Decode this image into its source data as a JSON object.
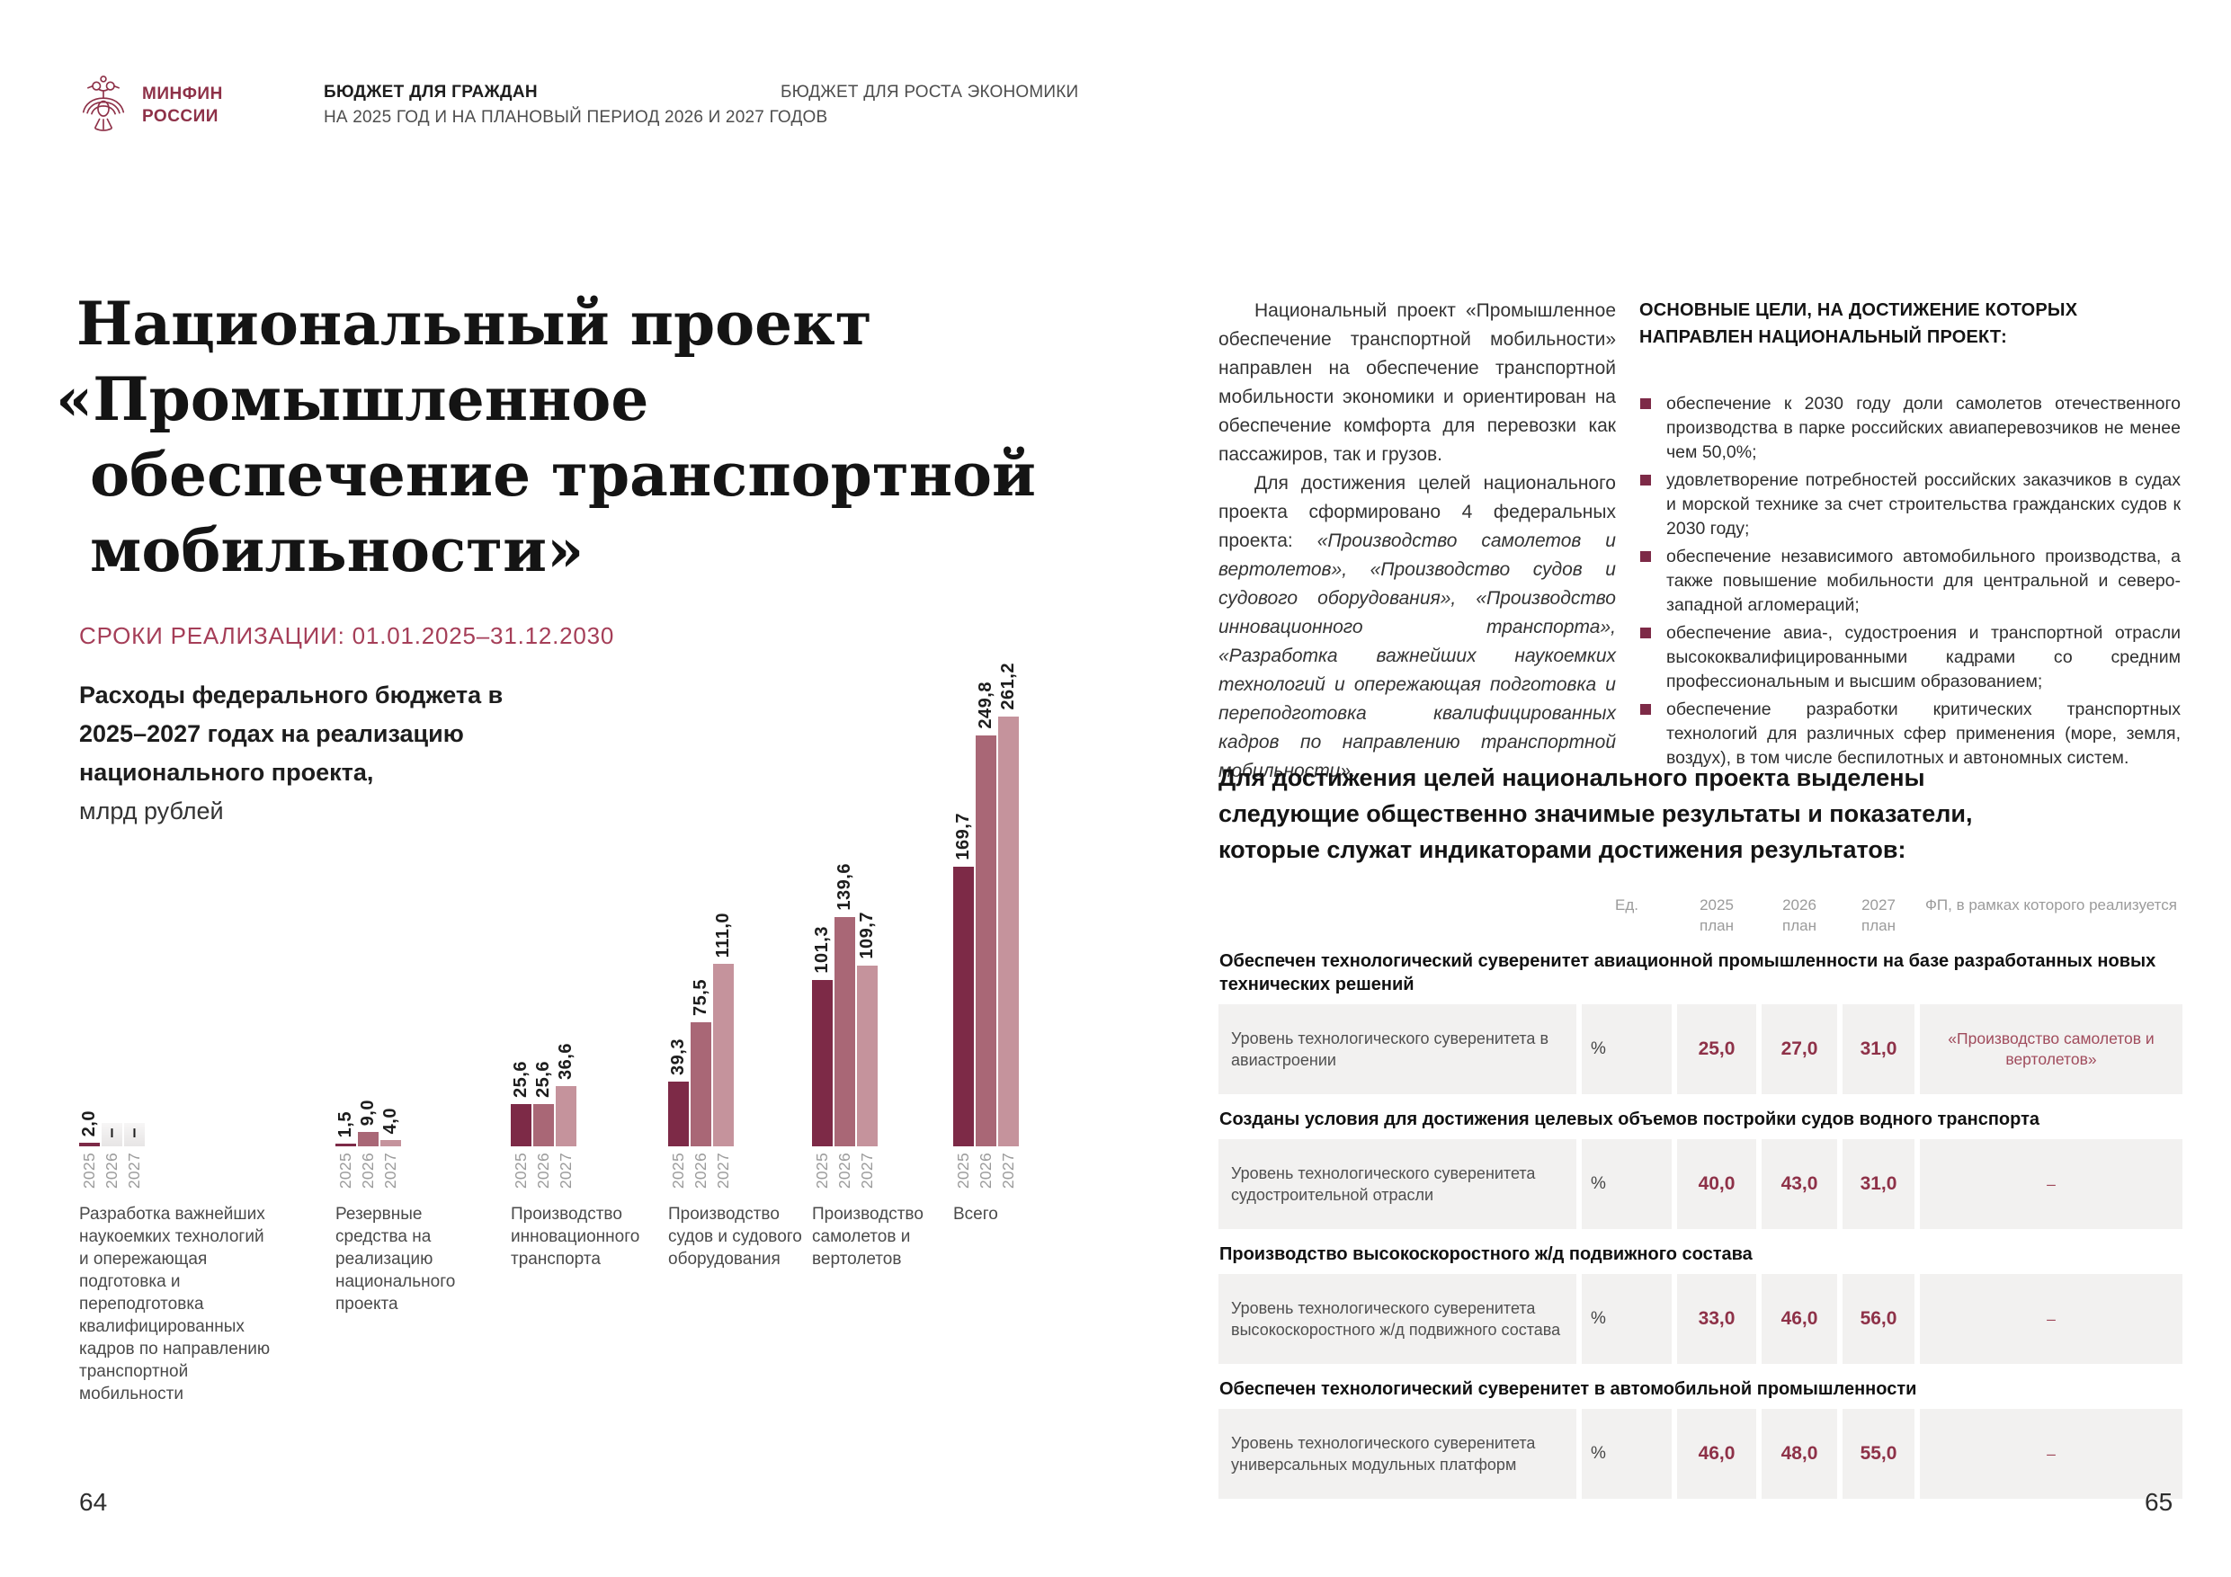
{
  "header": {
    "ministry_line1": "МИНФИН",
    "ministry_line2": "РОССИИ",
    "doc_title": "БЮДЖЕТ ДЛЯ ГРАЖДАН",
    "doc_subtitle": "НА 2025 ГОД И НА ПЛАНОВЫЙ ПЕРИОД 2026 И 2027 ГОДОВ",
    "doc_right": "БЮДЖЕТ ДЛЯ РОСТА ЭКОНОМИКИ"
  },
  "left_page": {
    "title_lines": [
      "Национальный проект",
      "«Промышленное",
      "обеспечение транспортной",
      "мобильности»"
    ],
    "dates": "СРОКИ РЕАЛИЗАЦИИ: 01.01.2025–31.12.2030",
    "chart_title_bold": "Расходы федерального бюджета в 2025–2027 годах на реализацию национального проекта,",
    "chart_title_unit": "млрд рублей",
    "page_number": "64"
  },
  "chart_data": {
    "type": "bar",
    "title": "Расходы федерального бюджета в 2025–2027 годах на реализацию национального проекта",
    "ylabel": "млрд рублей",
    "grid": false,
    "legend_position": "none",
    "years": [
      "2025",
      "2026",
      "2027"
    ],
    "colors": {
      "y2025": "#7d2a47",
      "y2026": "#a96776",
      "y2027": "#c5939c",
      "empty": "#edebeb"
    },
    "categories": [
      "Разработка важнейших наукоемких технологий и опережающая подготовка и переподготовка квалифицированных кадров по направлению транспортной мобильности",
      "Резервные средства на реализацию национального проекта",
      "Производство инновационного транспорта",
      "Производство судов и судового оборудования",
      "Производство самолетов и вертолетов",
      "Всего"
    ],
    "series": [
      {
        "name": "2025",
        "values": [
          2.0,
          1.5,
          25.6,
          39.3,
          101.3,
          169.7
        ],
        "labels": [
          "2,0",
          "1,5",
          "25,6",
          "39,3",
          "101,3",
          "169,7"
        ]
      },
      {
        "name": "2026",
        "values": [
          null,
          9.0,
          25.6,
          75.5,
          139.6,
          249.8
        ],
        "labels": [
          "–",
          "9,0",
          "25,6",
          "75,5",
          "139,6",
          "249,8"
        ]
      },
      {
        "name": "2027",
        "values": [
          null,
          4.0,
          36.6,
          111.0,
          109.7,
          261.2
        ],
        "labels": [
          "–",
          "4,0",
          "36,6",
          "111,0",
          "109,7",
          "261,2"
        ]
      }
    ]
  },
  "right_page": {
    "para1": "Национальный проект «Промышленное обеспечение транспортной мобильности» направлен на обеспечение транспортной мобильности экономики и ориентирован на обеспечение комфорта для перевозки как пассажиров, так и грузов.",
    "para2_intro": "Для достижения целей национального проекта сформировано 4 федеральных проекта: ",
    "para2_italic": "«Производство самолетов и вертолетов», «Производство судов и судового оборудования», «Производство инновационного транспорта», «Разработка важнейших наукоемких технологий и опережающая подготовка и переподготовка квалифицированных кадров по направлению транспортной мобильности».",
    "goals_heading": "ОСНОВНЫЕ ЦЕЛИ, НА ДОСТИЖЕНИЕ КОТОРЫХ НАПРАВЛЕН НАЦИОНАЛЬНЫЙ ПРОЕКТ:",
    "goals": [
      "обеспечение к 2030 году доли самолетов отечественного производства в парке российских авиаперевозчиков не менее чем 50,0%;",
      "удовлетворение потребностей российских заказчиков в судах и морской технике за счет строительства гражданских судов к 2030 году;",
      "обеспечение независимого автомобильного производства, а также повышение мобильности для центральной и северо-западной агломераций;",
      "обеспечение авиа-, судостроения и транспортной отрасли высококвалифицированными кадрами со средним профессиональным и высшим образованием;",
      "обеспечение разработки критических транспортных технологий для различных сфер применения (море, земля, воздух), в том числе беспилотных и автономных систем."
    ],
    "results_heading": "Для достижения целей национального проекта выделены следующие общественно значимые результаты и показатели, которые служат индикаторами достижения результатов:",
    "table": {
      "header": {
        "unit": "Ед.",
        "year_cols": [
          "2025",
          "2026",
          "2027"
        ],
        "plan_label": "план",
        "fp": "ФП, в рамках которого реализуется"
      },
      "sections": [
        {
          "title": "Обеспечен технологический суверенитет авиационной промышленности на базе разработанных новых технических решений",
          "indicator": "Уровень технологического суверенитета в авиастроении",
          "unit": "%",
          "v2025": "25,0",
          "v2026": "27,0",
          "v2027": "31,0",
          "fp": "«Производство самолетов и вертолетов»"
        },
        {
          "title": "Созданы условия для достижения целевых объемов постройки судов водного транспорта",
          "indicator": "Уровень технологического суверенитета судостроительной отрасли",
          "unit": "%",
          "v2025": "40,0",
          "v2026": "43,0",
          "v2027": "31,0",
          "fp": "–"
        },
        {
          "title": "Производство высокоскоростного ж/д подвижного состава",
          "indicator": "Уровень технологического суверенитета высокоскоростного ж/д подвижного состава",
          "unit": "%",
          "v2025": "33,0",
          "v2026": "46,0",
          "v2027": "56,0",
          "fp": "–"
        },
        {
          "title": "Обеспечен технологический суверенитет в автомобильной промышленности",
          "indicator": "Уровень технологического суверенитета универсальных модульных платформ",
          "unit": "%",
          "v2025": "46,0",
          "v2026": "48,0",
          "v2027": "55,0",
          "fp": "–"
        }
      ]
    },
    "page_number": "65"
  }
}
